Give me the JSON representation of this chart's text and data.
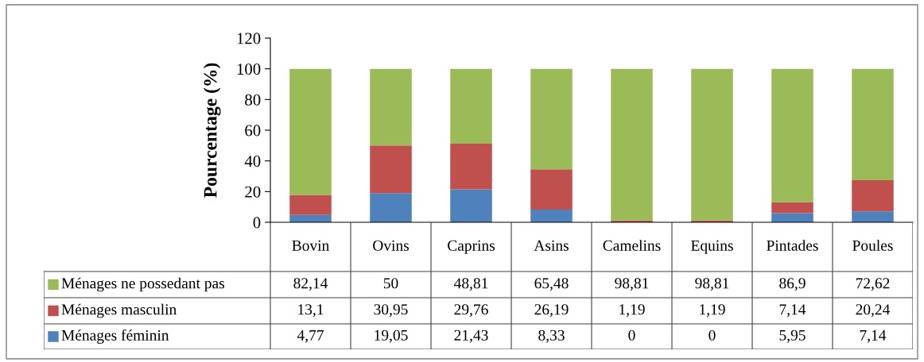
{
  "chart_data": {
    "type": "bar",
    "stacked": true,
    "ylabel": "Pourcentage (%)",
    "categories": [
      "Bovin",
      "Ovins",
      "Caprins",
      "Asins",
      "Camelins",
      "Equins",
      "Pintades",
      "Poules"
    ],
    "series": [
      {
        "name": "Ménages féminin",
        "color": "#4f81bd",
        "values": [
          4.77,
          19.05,
          21.43,
          8.33,
          0,
          0,
          5.95,
          7.14
        ],
        "value_labels": [
          "4,77",
          "19,05",
          "21,43",
          "8,33",
          "0",
          "0",
          "5,95",
          "7,14"
        ]
      },
      {
        "name": "Ménages masculin",
        "color": "#c0504d",
        "values": [
          13.1,
          30.95,
          29.76,
          26.19,
          1.19,
          1.19,
          7.14,
          20.24
        ],
        "value_labels": [
          "13,1",
          "30,95",
          "29,76",
          "26,19",
          "1,19",
          "1,19",
          "7,14",
          "20,24"
        ]
      },
      {
        "name": "Ménages ne possedant pas",
        "color": "#9bbb59",
        "values": [
          82.14,
          50,
          48.81,
          65.48,
          98.81,
          98.81,
          86.9,
          72.62
        ],
        "value_labels": [
          "82,14",
          "50",
          "48,81",
          "65,48",
          "98,81",
          "98,81",
          "86,9",
          "72,62"
        ]
      }
    ],
    "ylim": [
      0,
      120
    ],
    "yticks": [
      0,
      20,
      40,
      60,
      80,
      100,
      120
    ],
    "grid": false,
    "legend": "bottom"
  }
}
